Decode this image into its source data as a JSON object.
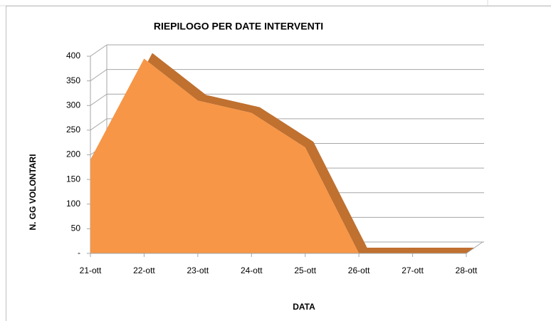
{
  "chart_data": {
    "type": "area",
    "title": "RIEPILOGO PER DATE INTERVENTI",
    "x_label": "DATA",
    "y_label": "N. GG VOLONTARI",
    "categories": [
      "21-ott",
      "22-ott",
      "23-ott",
      "24-ott",
      "25-ott",
      "26-ott",
      "27-ott",
      "28-ott"
    ],
    "values": [
      190,
      395,
      310,
      285,
      215,
      0,
      0,
      0
    ],
    "color": "#f79646",
    "side_color": "#c0702f",
    "ylim": [
      0,
      400
    ],
    "yticks": [
      {
        "value": 0,
        "label": "-"
      },
      50,
      100,
      150,
      200,
      250,
      300,
      350,
      400
    ],
    "grid": true
  }
}
